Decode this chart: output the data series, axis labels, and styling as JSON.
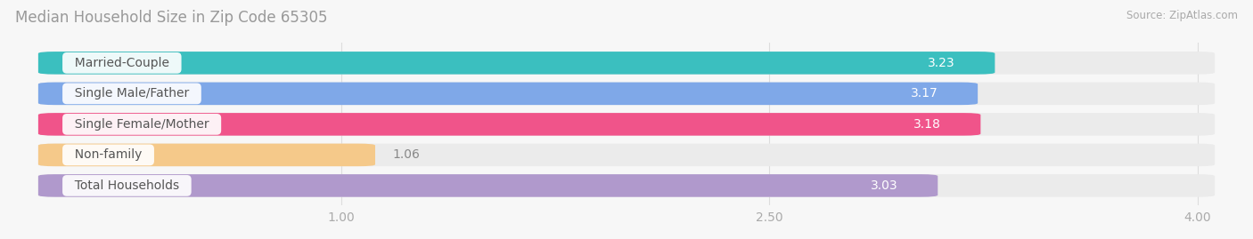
{
  "title": "Median Household Size in Zip Code 65305",
  "source": "Source: ZipAtlas.com",
  "categories": [
    "Married-Couple",
    "Single Male/Father",
    "Single Female/Mother",
    "Non-family",
    "Total Households"
  ],
  "values": [
    3.23,
    3.17,
    3.18,
    1.06,
    3.03
  ],
  "bar_colors": [
    "#3bbfbf",
    "#7fa8e8",
    "#f0548a",
    "#f5c98a",
    "#b099cc"
  ],
  "xmin": 0.0,
  "xmax": 4.0,
  "xticks": [
    1.0,
    2.5,
    4.0
  ],
  "bar_height": 0.62,
  "bar_gap": 0.18,
  "value_label_color": "#ffffff",
  "category_label_color": "#555555",
  "category_label_fontsize": 10,
  "value_label_fontsize": 10,
  "title_color": "#999999",
  "source_color": "#aaaaaa",
  "title_fontsize": 12,
  "background_color": "#f7f7f7",
  "bar_bg_color": "#ebebeb",
  "tick_color": "#aaaaaa",
  "tick_fontsize": 10,
  "grid_color": "#dddddd"
}
